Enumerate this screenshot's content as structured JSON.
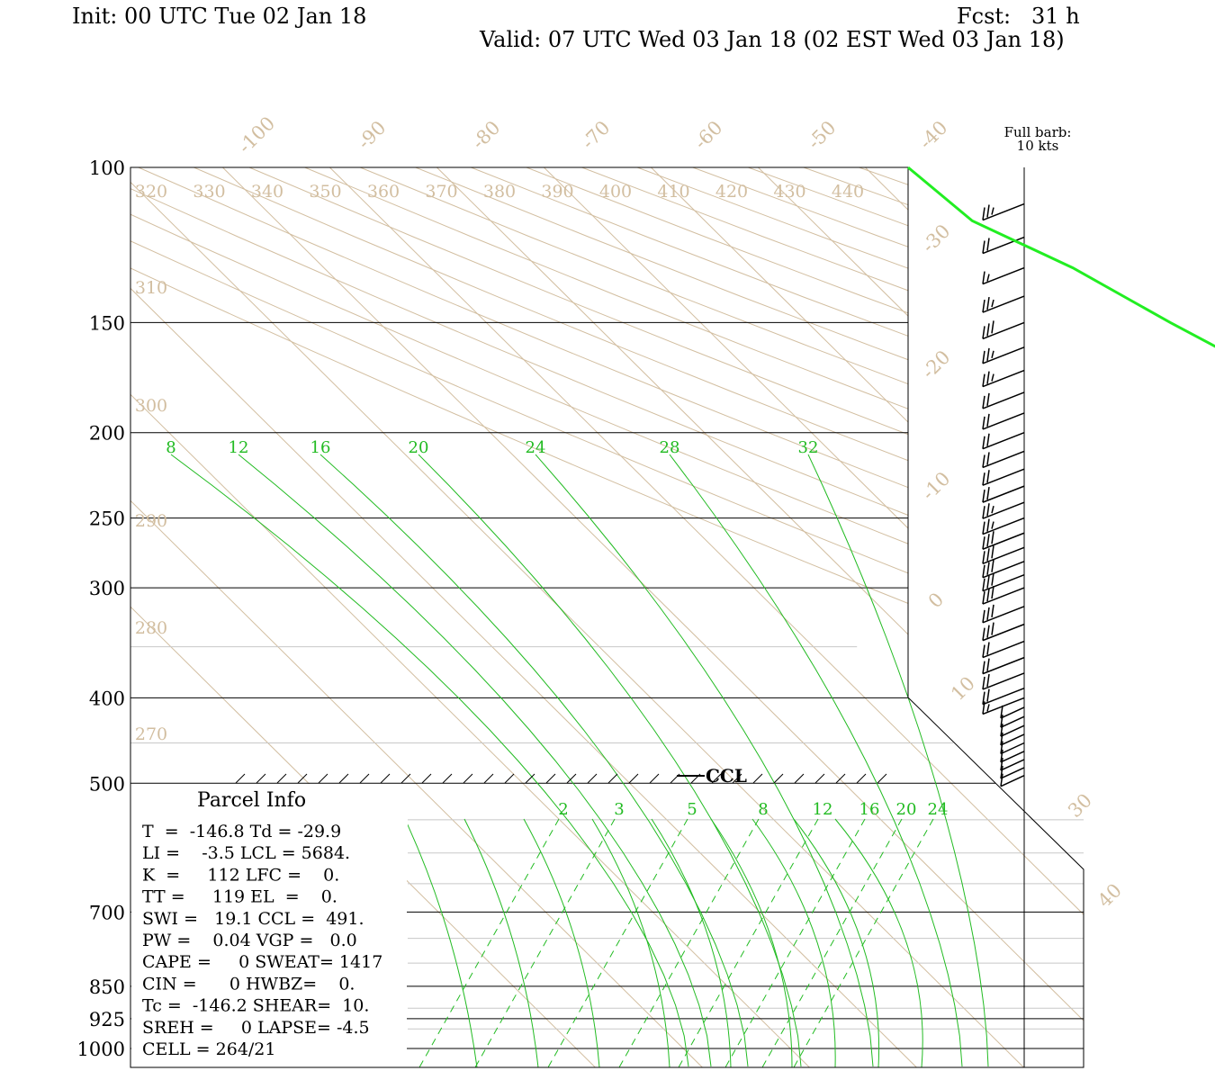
{
  "header": {
    "init": "Init: 00 UTC Tue 02 Jan 18",
    "fcst": "Fcst:   31 h",
    "valid": "Valid: 07 UTC Wed 03 Jan 18 (02 EST Wed 03 Jan 18)"
  },
  "barb_legend": {
    "line1": "Full barb:",
    "line2": "10 kts"
  },
  "parcel_info": {
    "title": "Parcel Info",
    "rows": [
      "T  =  -146.8 Td = -29.9",
      "LI =    -3.5 LCL = 5684.",
      "K  =     112 LFC =    0.",
      "TT =     119 EL  =    0.",
      "SWI =   19.1 CCL =  491.",
      "PW =    0.04 VGP =   0.0",
      "CAPE =     0 SWEAT= 1417",
      "CIN =      0 HWBZ=    0.",
      "Tc =  -146.2 SHEAR=  10.",
      "SREH =     0 LAPSE= -4.5",
      "CELL = 264/21"
    ]
  },
  "colors": {
    "sounding": "#22ee22",
    "mixing_ratio": "#22bb22",
    "isotherm": "#d2bea0",
    "axis": "#000000"
  },
  "chart_data": {
    "type": "skew-t",
    "title": "",
    "ylabel": "",
    "pressure_ticks": [
      {
        "p": 100,
        "label": "100"
      },
      {
        "p": 150,
        "label": "150"
      },
      {
        "p": 200,
        "label": "200"
      },
      {
        "p": 250,
        "label": "250"
      },
      {
        "p": 300,
        "label": "300"
      },
      {
        "p": 400,
        "label": "400"
      },
      {
        "p": 500,
        "label": "500"
      },
      {
        "p": 700,
        "label": "700"
      },
      {
        "p": 850,
        "label": "850"
      },
      {
        "p": 925,
        "label": "925"
      },
      {
        "p": 1000,
        "label": "1000"
      }
    ],
    "extra_isobars": [
      350,
      450,
      550,
      600,
      650,
      750,
      800,
      900,
      950
    ],
    "isotherms": [
      "-100",
      "-90",
      "-80",
      "-70",
      "-60",
      "-50",
      "-40",
      "-30",
      "-20",
      "-10",
      "0",
      "10",
      "30",
      "40"
    ],
    "theta_top_labels": [
      "320",
      "330",
      "340",
      "350",
      "360",
      "370",
      "380",
      "390",
      "400",
      "410",
      "420",
      "430",
      "440"
    ],
    "theta_side_labels": [
      "310",
      "300",
      "290",
      "280",
      "270"
    ],
    "mixing_ratio_upper_labels": [
      "8",
      "12",
      "16",
      "20",
      "24",
      "28",
      "32"
    ],
    "mixing_ratio_lower_labels": [
      "2",
      "3",
      "5",
      "8",
      "12",
      "16",
      "20",
      "24"
    ],
    "ccl_label": "CCL",
    "temperature_profile": [
      {
        "p": 100,
        "t": -46
      },
      {
        "p": 115,
        "t": -45
      },
      {
        "p": 130,
        "t": -40
      },
      {
        "p": 150,
        "t": -36
      },
      {
        "p": 165,
        "t": -33
      },
      {
        "p": 180,
        "t": -31
      },
      {
        "p": 200,
        "t": -26
      },
      {
        "p": 220,
        "t": -22
      },
      {
        "p": 240,
        "t": -19
      },
      {
        "p": 260,
        "t": -20
      },
      {
        "p": 275,
        "t": -27
      },
      {
        "p": 290,
        "t": -34
      },
      {
        "p": 300,
        "t": -38
      },
      {
        "p": 315,
        "t": -38
      },
      {
        "p": 350,
        "t": -30
      },
      {
        "p": 400,
        "t": -23
      },
      {
        "p": 430,
        "t": -22
      },
      {
        "p": 470,
        "t": -15
      },
      {
        "p": 490,
        "t": -11
      }
    ],
    "wind_barbs": [
      {
        "p": 110,
        "kts": 25
      },
      {
        "p": 120,
        "kts": 20
      },
      {
        "p": 130,
        "kts": 15
      },
      {
        "p": 140,
        "kts": 25
      },
      {
        "p": 150,
        "kts": 30
      },
      {
        "p": 160,
        "kts": 25
      },
      {
        "p": 170,
        "kts": 25
      },
      {
        "p": 180,
        "kts": 20
      },
      {
        "p": 190,
        "kts": 20
      },
      {
        "p": 200,
        "kts": 20
      },
      {
        "p": 210,
        "kts": 20
      },
      {
        "p": 220,
        "kts": 20
      },
      {
        "p": 230,
        "kts": 20
      },
      {
        "p": 240,
        "kts": 25
      },
      {
        "p": 250,
        "kts": 25
      },
      {
        "p": 260,
        "kts": 30
      },
      {
        "p": 270,
        "kts": 30
      },
      {
        "p": 280,
        "kts": 30
      },
      {
        "p": 290,
        "kts": 30
      },
      {
        "p": 300,
        "kts": 30
      },
      {
        "p": 315,
        "kts": 30
      },
      {
        "p": 330,
        "kts": 30
      },
      {
        "p": 345,
        "kts": 20
      },
      {
        "p": 360,
        "kts": 20
      },
      {
        "p": 375,
        "kts": 20
      },
      {
        "p": 390,
        "kts": 20
      },
      {
        "p": 400,
        "kts": 15
      },
      {
        "p": 410,
        "kts": 10
      },
      {
        "p": 420,
        "kts": 10
      },
      {
        "p": 430,
        "kts": 10
      },
      {
        "p": 440,
        "kts": 10
      },
      {
        "p": 450,
        "kts": 10
      },
      {
        "p": 460,
        "kts": 10
      },
      {
        "p": 470,
        "kts": 10
      },
      {
        "p": 480,
        "kts": 10
      },
      {
        "p": 490,
        "kts": 10
      }
    ]
  }
}
